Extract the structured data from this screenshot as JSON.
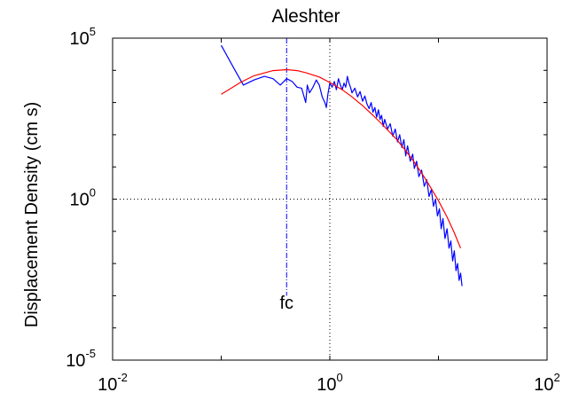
{
  "chart_data": {
    "type": "line",
    "title": "Aleshter",
    "xlabel": "",
    "ylabel": "Displacement Density (cm s)",
    "xscale": "log",
    "yscale": "log",
    "xlim": [
      0.01,
      100
    ],
    "ylim": [
      1e-05,
      100000
    ],
    "grid": "dotted lines at x=1 and y=1 only",
    "x_ticks": [
      {
        "base": "10",
        "exp": "-2"
      },
      {
        "base": "10",
        "exp": "0"
      },
      {
        "base": "10",
        "exp": "2"
      }
    ],
    "y_ticks": [
      {
        "base": "10",
        "exp": "-5"
      },
      {
        "base": "10",
        "exp": "0"
      },
      {
        "base": "10",
        "exp": "5"
      }
    ],
    "annotations": [
      {
        "text": "fc",
        "x": 0.4,
        "y": 0.0004
      }
    ],
    "fc_line": {
      "x": 0.4,
      "y_range": [
        0.001,
        100000
      ],
      "color": "#0000ff",
      "style": "dash-dot"
    },
    "series": [
      {
        "color": "#0000ff",
        "points": [
          [
            0.1,
            60000
          ],
          [
            0.13,
            12000
          ],
          [
            0.16,
            3500
          ],
          [
            0.2,
            5000
          ],
          [
            0.25,
            6500
          ],
          [
            0.3,
            5500
          ],
          [
            0.35,
            3500
          ],
          [
            0.4,
            5500
          ],
          [
            0.45,
            4500
          ],
          [
            0.5,
            3000
          ],
          [
            0.55,
            2800
          ],
          [
            0.6,
            1000
          ],
          [
            0.62,
            3500
          ],
          [
            0.65,
            2000
          ],
          [
            0.7,
            3000
          ],
          [
            0.75,
            5000
          ],
          [
            0.8,
            3500
          ],
          [
            0.85,
            1500
          ],
          [
            0.9,
            1000
          ],
          [
            0.93,
            700
          ],
          [
            0.96,
            1800
          ],
          [
            1.0,
            4000
          ],
          [
            1.05,
            3000
          ],
          [
            1.1,
            4500
          ],
          [
            1.15,
            2500
          ],
          [
            1.2,
            5500
          ],
          [
            1.25,
            3500
          ],
          [
            1.3,
            2500
          ],
          [
            1.35,
            4000
          ],
          [
            1.4,
            3000
          ],
          [
            1.45,
            6500
          ],
          [
            1.5,
            4000
          ],
          [
            1.55,
            3000
          ],
          [
            1.6,
            2000
          ],
          [
            1.7,
            2800
          ],
          [
            1.8,
            1500
          ],
          [
            1.9,
            2200
          ],
          [
            2.0,
            1100
          ],
          [
            2.1,
            1600
          ],
          [
            2.2,
            900
          ],
          [
            2.3,
            650
          ],
          [
            2.4,
            1000
          ],
          [
            2.5,
            500
          ],
          [
            2.6,
            700
          ],
          [
            2.7,
            350
          ],
          [
            2.8,
            600
          ],
          [
            2.9,
            300
          ],
          [
            3.0,
            400
          ],
          [
            3.1,
            180
          ],
          [
            3.2,
            300
          ],
          [
            3.4,
            150
          ],
          [
            3.6,
            220
          ],
          [
            3.8,
            90
          ],
          [
            4.0,
            150
          ],
          [
            4.2,
            60
          ],
          [
            4.4,
            100
          ],
          [
            4.6,
            40
          ],
          [
            4.8,
            70
          ],
          [
            5.0,
            22
          ],
          [
            5.2,
            45
          ],
          [
            5.5,
            15
          ],
          [
            5.8,
            25
          ],
          [
            6.0,
            9
          ],
          [
            6.3,
            15
          ],
          [
            6.6,
            5
          ],
          [
            7.0,
            8
          ],
          [
            7.4,
            2.5
          ],
          [
            7.8,
            4
          ],
          [
            8.2,
            1.2
          ],
          [
            8.6,
            2
          ],
          [
            9.0,
            0.6
          ],
          [
            9.4,
            1.0
          ],
          [
            9.8,
            0.3
          ],
          [
            10.2,
            0.5
          ],
          [
            10.6,
            0.12
          ],
          [
            11.0,
            0.25
          ],
          [
            11.5,
            0.06
          ],
          [
            12.0,
            0.12
          ],
          [
            12.5,
            0.03
          ],
          [
            13.0,
            0.05
          ],
          [
            13.5,
            0.012
          ],
          [
            14.0,
            0.025
          ],
          [
            14.5,
            0.006
          ],
          [
            15.0,
            0.01
          ],
          [
            15.5,
            0.003
          ],
          [
            16.0,
            0.005
          ],
          [
            16.5,
            0.002
          ]
        ]
      },
      {
        "color": "#ff0000",
        "points": [
          [
            0.1,
            1800
          ],
          [
            0.15,
            4200
          ],
          [
            0.2,
            6800
          ],
          [
            0.3,
            9800
          ],
          [
            0.4,
            10500
          ],
          [
            0.5,
            9800
          ],
          [
            0.6,
            8500
          ],
          [
            0.8,
            6200
          ],
          [
            1.0,
            4200
          ],
          [
            1.3,
            2500
          ],
          [
            1.6,
            1500
          ],
          [
            2.0,
            800
          ],
          [
            2.5,
            400
          ],
          [
            3.0,
            220
          ],
          [
            4.0,
            80
          ],
          [
            5.0,
            32
          ],
          [
            6.0,
            14
          ],
          [
            7.0,
            6.5
          ],
          [
            8.0,
            3.2
          ],
          [
            10.0,
            0.9
          ],
          [
            12.0,
            0.28
          ],
          [
            14.0,
            0.09
          ],
          [
            16.0,
            0.03
          ]
        ]
      }
    ]
  }
}
